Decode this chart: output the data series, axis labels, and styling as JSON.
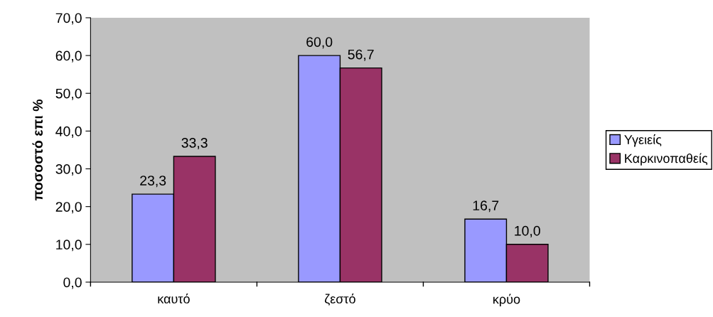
{
  "chart_data": {
    "type": "bar",
    "ylabel": "ποσοστό επι %",
    "categories": [
      "καυτό",
      "ζεστό",
      "κρύο"
    ],
    "series": [
      {
        "name": "Υγειείς",
        "color": "#9999ff",
        "values": [
          23.3,
          60.0,
          16.7
        ],
        "value_labels": [
          "23,3",
          "60,0",
          "16,7"
        ]
      },
      {
        "name": "Καρκινοπαθείς",
        "color": "#993366",
        "values": [
          33.3,
          56.7,
          10.0
        ],
        "value_labels": [
          "33,3",
          "56,7",
          "10,0"
        ]
      }
    ],
    "ylim": [
      0,
      70
    ],
    "yticks": [
      {
        "value": 0,
        "label": "0,0"
      },
      {
        "value": 10,
        "label": "10,0"
      },
      {
        "value": 20,
        "label": "20,0"
      },
      {
        "value": 30,
        "label": "30,0"
      },
      {
        "value": 40,
        "label": "40,0"
      },
      {
        "value": 50,
        "label": "50,0"
      },
      {
        "value": 60,
        "label": "60,0"
      },
      {
        "value": 70,
        "label": "70,0"
      }
    ],
    "grid": false,
    "legend": "right"
  }
}
